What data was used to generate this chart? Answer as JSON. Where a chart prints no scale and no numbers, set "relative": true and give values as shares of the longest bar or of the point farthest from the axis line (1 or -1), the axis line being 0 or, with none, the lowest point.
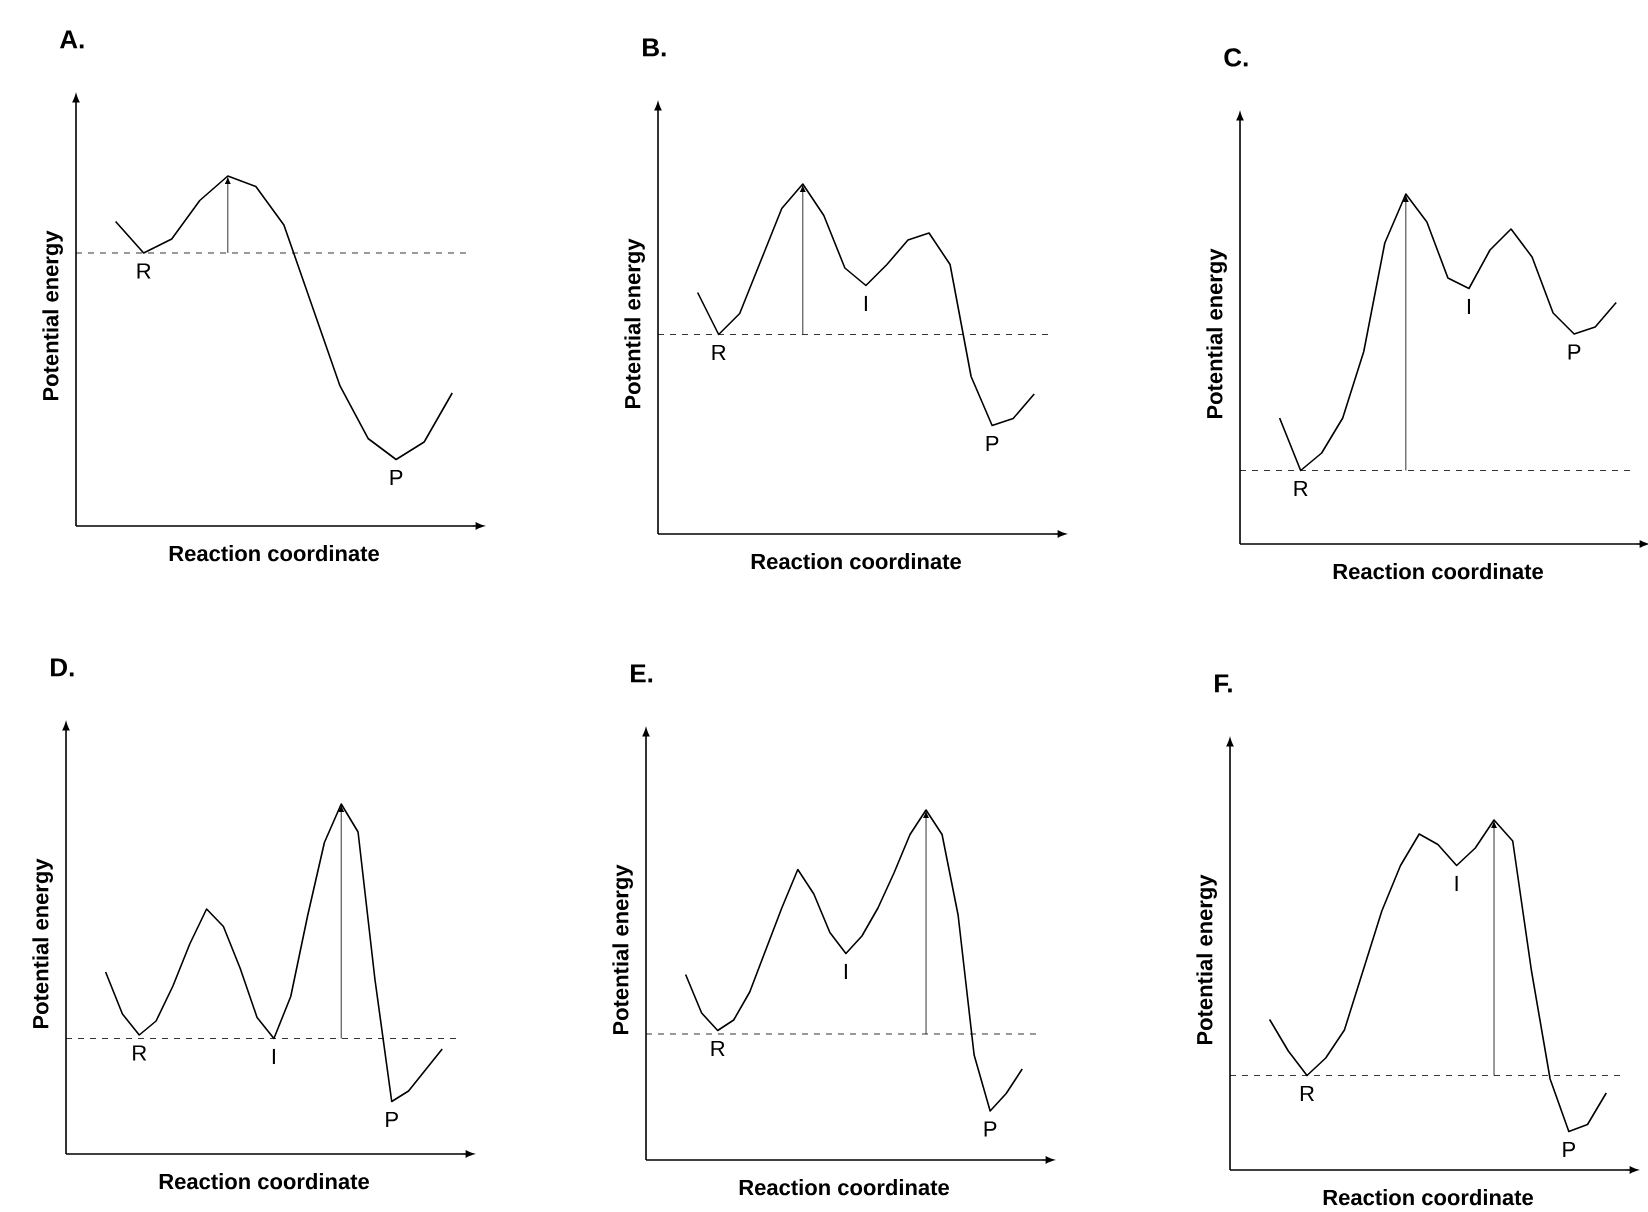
{
  "chart_data": [
    {
      "type": "line",
      "title": "A.",
      "xlabel": "Reaction coordinate",
      "ylabel": "Potential energy",
      "relative": true,
      "color": "#000000",
      "categories": [
        null,
        null,
        null,
        null,
        null,
        null,
        null,
        null,
        null,
        null,
        null,
        null,
        null
      ],
      "values": [
        0.87,
        0.78,
        0.82,
        0.93,
        1.0,
        0.97,
        0.86,
        0.63,
        0.4,
        0.25,
        0.19,
        0.24,
        0.38
      ],
      "ref_lines": [
        {
          "axis": "y",
          "value": 0.78,
          "line_style": "dashed"
        }
      ],
      "annotations": [
        "R",
        "P"
      ]
    },
    {
      "type": "line",
      "title": "B.",
      "xlabel": "Reaction coordinate",
      "ylabel": "Potential energy",
      "relative": true,
      "color": "#000000",
      "categories": [
        null,
        null,
        null,
        null,
        null,
        null,
        null,
        null,
        null,
        null,
        null,
        null,
        null,
        null,
        null,
        null,
        null
      ],
      "values": [
        0.69,
        0.57,
        0.63,
        0.78,
        0.93,
        1.0,
        0.91,
        0.76,
        0.71,
        0.77,
        0.84,
        0.86,
        0.77,
        0.45,
        0.31,
        0.33,
        0.4
      ],
      "ref_lines": [
        {
          "axis": "y",
          "value": 0.57,
          "line_style": "dashed"
        }
      ],
      "annotations": [
        "R",
        "I",
        "P"
      ]
    },
    {
      "type": "line",
      "title": "C.",
      "xlabel": "Reaction coordinate",
      "ylabel": "Potential energy",
      "relative": true,
      "color": "#000000",
      "categories": [
        null,
        null,
        null,
        null,
        null,
        null,
        null,
        null,
        null,
        null,
        null,
        null,
        null,
        null,
        null,
        null,
        null
      ],
      "values": [
        0.36,
        0.21,
        0.26,
        0.36,
        0.55,
        0.86,
        1.0,
        0.92,
        0.76,
        0.73,
        0.84,
        0.9,
        0.82,
        0.66,
        0.6,
        0.62,
        0.69
      ],
      "ref_lines": [
        {
          "axis": "y",
          "value": 0.21,
          "line_style": "dashed"
        }
      ],
      "annotations": [
        "R",
        "I",
        "P"
      ]
    },
    {
      "type": "line",
      "title": "D.",
      "xlabel": "Reaction coordinate",
      "ylabel": "Potential energy",
      "relative": true,
      "color": "#000000",
      "categories": [
        null,
        null,
        null,
        null,
        null,
        null,
        null,
        null,
        null,
        null,
        null,
        null,
        null,
        null,
        null,
        null,
        null,
        null,
        null,
        null,
        null
      ],
      "values": [
        0.52,
        0.4,
        0.34,
        0.38,
        0.48,
        0.6,
        0.7,
        0.65,
        0.53,
        0.39,
        0.33,
        0.45,
        0.68,
        0.89,
        1.0,
        0.92,
        0.5,
        0.15,
        0.18,
        0.24,
        0.3
      ],
      "ref_lines": [
        {
          "axis": "y",
          "value": 0.33,
          "line_style": "dashed"
        }
      ],
      "annotations": [
        "R",
        "I",
        "P"
      ]
    },
    {
      "type": "line",
      "title": "E.",
      "xlabel": "Reaction coordinate",
      "ylabel": "Potential energy",
      "relative": true,
      "color": "#000000",
      "categories": [
        null,
        null,
        null,
        null,
        null,
        null,
        null,
        null,
        null,
        null,
        null,
        null,
        null,
        null,
        null,
        null,
        null,
        null,
        null,
        null,
        null,
        null
      ],
      "values": [
        0.53,
        0.42,
        0.37,
        0.4,
        0.48,
        0.6,
        0.72,
        0.83,
        0.76,
        0.65,
        0.59,
        0.64,
        0.72,
        0.82,
        0.93,
        1.0,
        0.93,
        0.7,
        0.3,
        0.14,
        0.19,
        0.26
      ],
      "ref_lines": [
        {
          "axis": "y",
          "value": 0.36,
          "line_style": "dashed"
        }
      ],
      "annotations": [
        "R",
        "I",
        "P"
      ]
    },
    {
      "type": "line",
      "title": "F.",
      "xlabel": "Reaction coordinate",
      "ylabel": "Potential energy",
      "relative": true,
      "color": "#000000",
      "categories": [
        null,
        null,
        null,
        null,
        null,
        null,
        null,
        null,
        null,
        null,
        null,
        null,
        null,
        null,
        null,
        null,
        null,
        null,
        null
      ],
      "values": [
        0.43,
        0.34,
        0.27,
        0.32,
        0.4,
        0.57,
        0.74,
        0.87,
        0.96,
        0.93,
        0.87,
        0.92,
        1.0,
        0.94,
        0.57,
        0.26,
        0.11,
        0.13,
        0.22
      ],
      "ref_lines": [
        {
          "axis": "y",
          "value": 0.27,
          "line_style": "dashed"
        }
      ],
      "annotations": [
        "R",
        "I",
        "P"
      ]
    }
  ]
}
